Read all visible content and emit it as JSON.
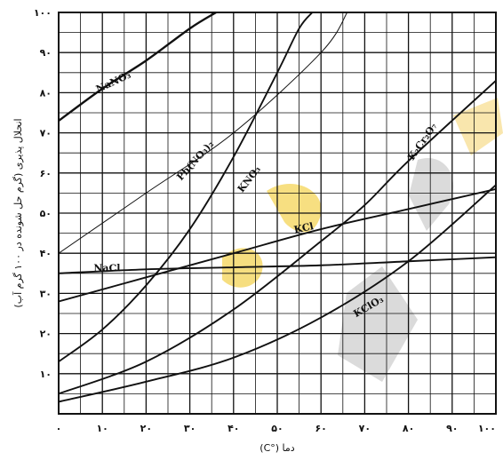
{
  "chart_data": {
    "type": "line",
    "xlabel": "دما (°C)",
    "ylabel": "انحلال پذیری (گرم حل شونده در ۱۰۰ گرم آب)",
    "xlim": [
      0,
      100
    ],
    "ylim": [
      0,
      100
    ],
    "grid": true,
    "x_tick_labels": [
      "۰",
      "۱۰",
      "۲۰",
      "۳۰",
      "۴۰",
      "۵۰",
      "۶۰",
      "۷۰",
      "۸۰",
      "۹۰",
      "۱۰۰"
    ],
    "y_tick_labels": [
      "۱۰",
      "۲۰",
      "۳۰",
      "۴۰",
      "۵۰",
      "۶۰",
      "۷۰",
      "۸۰",
      "۹۰",
      "۱۰۰"
    ],
    "series": [
      {
        "name": "NaNO₃",
        "x": [
          0,
          10,
          20,
          30,
          36
        ],
        "y": [
          73,
          81,
          88,
          96,
          100
        ]
      },
      {
        "name": "Pb(NO₃)₂",
        "x": [
          0,
          20,
          40,
          60,
          66
        ],
        "y": [
          40,
          55,
          70,
          90,
          100
        ]
      },
      {
        "name": "KNO₃",
        "x": [
          0,
          10,
          20,
          30,
          40,
          50,
          55,
          58
        ],
        "y": [
          13,
          21,
          32,
          46,
          64,
          85,
          96,
          100
        ]
      },
      {
        "name": "KCl",
        "x": [
          0,
          20,
          40,
          60,
          80,
          100
        ],
        "y": [
          28,
          34,
          40,
          46,
          51,
          56
        ]
      },
      {
        "name": "NaCl",
        "x": [
          0,
          20,
          40,
          60,
          80,
          100
        ],
        "y": [
          35,
          36,
          36.5,
          37,
          38,
          39
        ]
      },
      {
        "name": "K₂Cr₂O₇",
        "x": [
          0,
          20,
          40,
          60,
          70,
          80,
          100
        ],
        "y": [
          5,
          13,
          26,
          43,
          52,
          63,
          83
        ]
      },
      {
        "name": "KClO₃",
        "x": [
          0,
          20,
          40,
          60,
          80,
          100
        ],
        "y": [
          3,
          8,
          14,
          24,
          38,
          57
        ]
      }
    ]
  },
  "watermark": {
    "color": "#f0c419",
    "secondary_color": "#9a9a9a"
  }
}
